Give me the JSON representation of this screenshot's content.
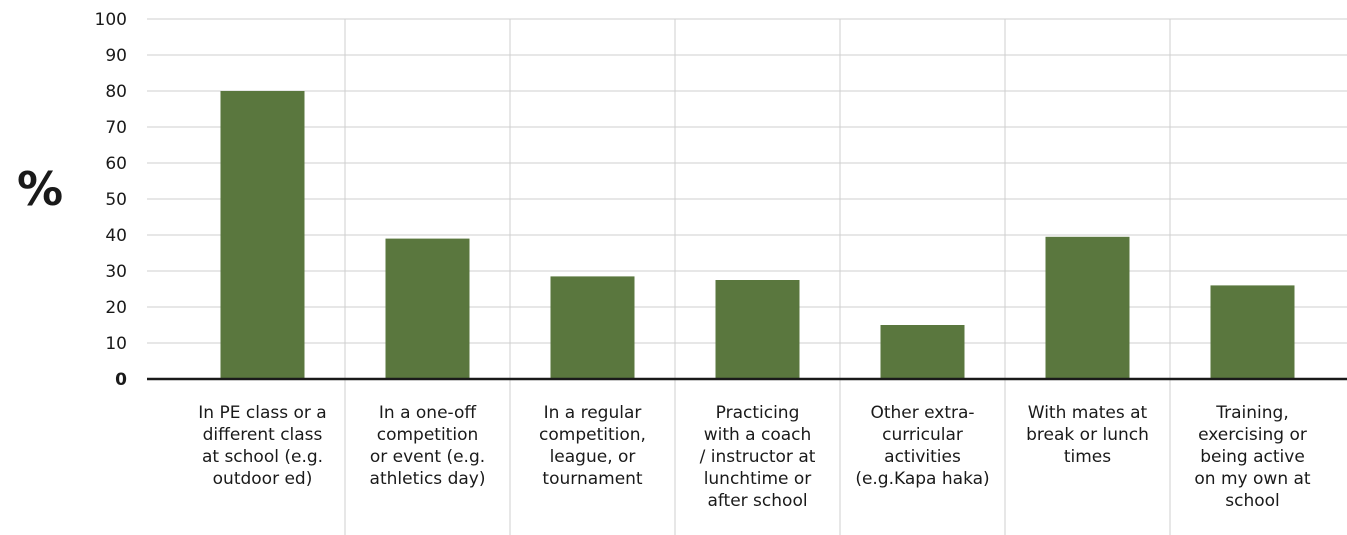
{
  "chart_data": {
    "type": "bar",
    "ylabel": "%",
    "xlabel": "",
    "title": "",
    "ylim": [
      0,
      100
    ],
    "yticks": [
      0,
      10,
      20,
      30,
      40,
      50,
      60,
      70,
      80,
      90,
      100
    ],
    "grid": true,
    "bar_color": "#5a773e",
    "categories": [
      "In PE class or a different class at school (e.g. outdoor ed)",
      "In a one-off competition or event (e.g. athletics day)",
      "In a regular competition, league, or tournament",
      "Practicing with a coach / instructor at lunchtime or after school",
      "Other extra-curricular activities (e.g.Kapa haka)",
      "With mates at break or lunch times",
      "Training, exercising or being active on my own at school"
    ],
    "category_lines": [
      [
        "In PE class or a",
        "different class",
        "at school (e.g.",
        "outdoor ed)"
      ],
      [
        "In a one-off",
        "competition",
        "or event (e.g.",
        "athletics day)"
      ],
      [
        "In a regular",
        "competition,",
        "league, or",
        "tournament"
      ],
      [
        "Practicing",
        "with a coach",
        "/ instructor at",
        "lunchtime or",
        "after school"
      ],
      [
        "Other extra-",
        "curricular",
        "activities",
        "(e.g.Kapa haka)"
      ],
      [
        "With mates at",
        "break or lunch",
        "times"
      ],
      [
        "Training,",
        "exercising or",
        "being active",
        "on my own at",
        "school"
      ]
    ],
    "values": [
      80,
      39,
      28.5,
      27.5,
      15,
      39.5,
      26
    ]
  }
}
